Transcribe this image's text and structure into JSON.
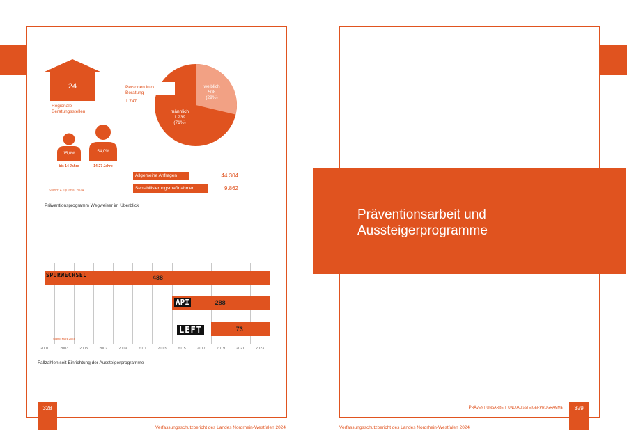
{
  "left_page": {
    "consultation": {
      "house_value": "24",
      "house_label": "Regionale Beratungsstellen",
      "persons_label": "Personen in der Beratung",
      "persons_total": "1.747",
      "pie": {
        "female_label": "weiblich",
        "female_value": "508",
        "female_pct": "(29%)",
        "male_label": "männlich",
        "male_value": "1.239",
        "male_pct": "(71%)"
      },
      "age_groups": [
        {
          "pct": "15,0%",
          "label": "bis 14 Jahre"
        },
        {
          "pct": "54,0%",
          "label": "14-27 Jahre"
        }
      ],
      "stats": [
        {
          "label": "Allgemeine Anfragen",
          "value": "44.304"
        },
        {
          "label": "Sensibilisierungsmaßnahmen",
          "value": "9.862"
        }
      ],
      "stand": "Stand: 4. Quartal 2024",
      "caption": "Präventionsprogramm Wegweiser im Überblick"
    },
    "chart_data": {
      "type": "bar",
      "orientation": "horizontal",
      "title": "",
      "series": [
        {
          "name": "SPURWECHSEL",
          "start": 2001,
          "value": 488
        },
        {
          "name": "API",
          "start": 2014,
          "value": 288
        },
        {
          "name": "LEFT",
          "start": 2018,
          "value": 73
        }
      ],
      "x_ticks": [
        "2001",
        "2003",
        "2005",
        "2007",
        "2009",
        "2011",
        "2013",
        "2015",
        "2017",
        "2019",
        "2021",
        "2023"
      ],
      "xlim": [
        2001,
        2024
      ],
      "grid": true,
      "stand": "Stand: März 2024"
    },
    "chart_caption": "Fallzahlen seit Einrichtung der Aussteigerprogramme",
    "page_number": "328",
    "footer": "Verfassungsschutzbericht des Landes Nordrhein-Westfalen 2024"
  },
  "right_page": {
    "chapter_title_line1": "Präventionsarbeit und",
    "chapter_title_line2": "Aussteigerprogramme",
    "running_head": "Präventionsarbeit und Aussteigerprogramme",
    "page_number": "329",
    "footer": "Verfassungsschutzbericht des Landes Nordrhein-Westfalen 2024"
  },
  "colors": {
    "accent": "#e0531f",
    "accent_light": "#f2a184"
  }
}
